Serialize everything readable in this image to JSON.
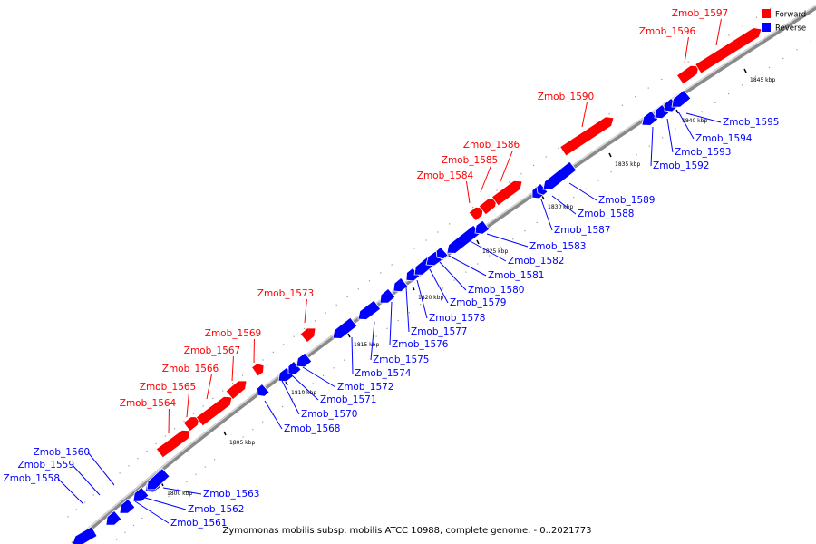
{
  "title": "Zymomonas mobilis subsp. mobilis ATCC 10988, complete genome. - 0..2021773",
  "legend": [
    {
      "label": "Forward",
      "color": "#ff0000"
    },
    {
      "label": "Reverse",
      "color": "#0000ff"
    }
  ],
  "colors": {
    "forward": "#ff0000",
    "reverse": "#0000ff",
    "backbone": "#808080"
  },
  "ticks": [
    "1805 kbp",
    "1810 kbp",
    "1815 kbp",
    "1820 kbp",
    "1825 kbp",
    "1830 kbp",
    "1835 kbp",
    "1840 kbp",
    "1845 kbp",
    "1800 kbp"
  ],
  "genes": [
    {
      "label": "Zmob_1558",
      "strand": "reverse"
    },
    {
      "label": "Zmob_1559",
      "strand": "reverse"
    },
    {
      "label": "Zmob_1560",
      "strand": "reverse"
    },
    {
      "label": "Zmob_1561",
      "strand": "reverse"
    },
    {
      "label": "Zmob_1562",
      "strand": "reverse"
    },
    {
      "label": "Zmob_1563",
      "strand": "reverse"
    },
    {
      "label": "Zmob_1564",
      "strand": "forward"
    },
    {
      "label": "Zmob_1565",
      "strand": "forward"
    },
    {
      "label": "Zmob_1566",
      "strand": "forward"
    },
    {
      "label": "Zmob_1567",
      "strand": "forward"
    },
    {
      "label": "Zmob_1568",
      "strand": "reverse"
    },
    {
      "label": "Zmob_1569",
      "strand": "forward"
    },
    {
      "label": "Zmob_1570",
      "strand": "reverse"
    },
    {
      "label": "Zmob_1571",
      "strand": "reverse"
    },
    {
      "label": "Zmob_1572",
      "strand": "reverse"
    },
    {
      "label": "Zmob_1573",
      "strand": "forward"
    },
    {
      "label": "Zmob_1574",
      "strand": "reverse"
    },
    {
      "label": "Zmob_1575",
      "strand": "reverse"
    },
    {
      "label": "Zmob_1576",
      "strand": "reverse"
    },
    {
      "label": "Zmob_1577",
      "strand": "reverse"
    },
    {
      "label": "Zmob_1578",
      "strand": "reverse"
    },
    {
      "label": "Zmob_1579",
      "strand": "reverse"
    },
    {
      "label": "Zmob_1580",
      "strand": "reverse"
    },
    {
      "label": "Zmob_1581",
      "strand": "reverse"
    },
    {
      "label": "Zmob_1582",
      "strand": "reverse"
    },
    {
      "label": "Zmob_1583",
      "strand": "reverse"
    },
    {
      "label": "Zmob_1584",
      "strand": "forward"
    },
    {
      "label": "Zmob_1585",
      "strand": "forward"
    },
    {
      "label": "Zmob_1586",
      "strand": "forward"
    },
    {
      "label": "Zmob_1587",
      "strand": "reverse"
    },
    {
      "label": "Zmob_1588",
      "strand": "reverse"
    },
    {
      "label": "Zmob_1589",
      "strand": "reverse"
    },
    {
      "label": "Zmob_1590",
      "strand": "forward"
    },
    {
      "label": "Zmob_1592",
      "strand": "reverse"
    },
    {
      "label": "Zmob_1593",
      "strand": "reverse"
    },
    {
      "label": "Zmob_1594",
      "strand": "reverse"
    },
    {
      "label": "Zmob_1595",
      "strand": "reverse"
    },
    {
      "label": "Zmob_1596",
      "strand": "forward"
    },
    {
      "label": "Zmob_1597",
      "strand": "forward"
    }
  ]
}
